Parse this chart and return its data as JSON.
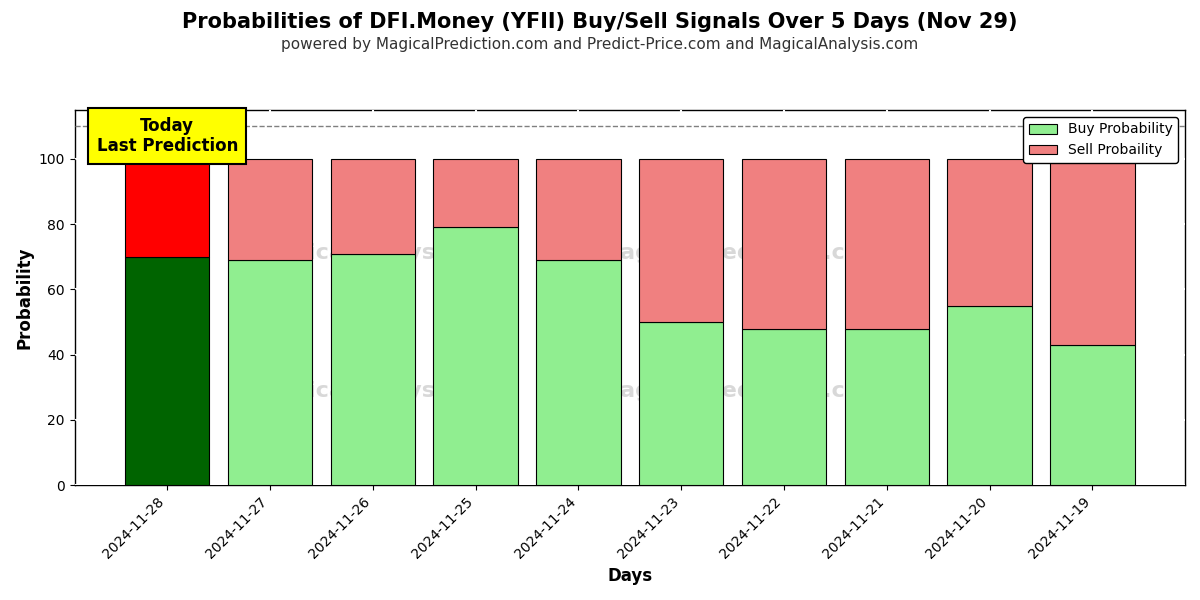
{
  "title": "Probabilities of DFI.Money (YFII) Buy/Sell Signals Over 5 Days (Nov 29)",
  "subtitle": "powered by MagicalPrediction.com and Predict-Price.com and MagicalAnalysis.com",
  "xlabel": "Days",
  "ylabel": "Probability",
  "categories": [
    "2024-11-28",
    "2024-11-27",
    "2024-11-26",
    "2024-11-25",
    "2024-11-24",
    "2024-11-23",
    "2024-11-22",
    "2024-11-21",
    "2024-11-20",
    "2024-11-19"
  ],
  "buy_values": [
    70,
    69,
    71,
    79,
    69,
    50,
    48,
    48,
    55,
    43
  ],
  "sell_values": [
    30,
    31,
    29,
    21,
    31,
    50,
    52,
    52,
    45,
    57
  ],
  "buy_colors": [
    "#006400",
    "#90EE90",
    "#90EE90",
    "#90EE90",
    "#90EE90",
    "#90EE90",
    "#90EE90",
    "#90EE90",
    "#90EE90",
    "#90EE90"
  ],
  "sell_colors": [
    "#FF0000",
    "#F08080",
    "#F08080",
    "#F08080",
    "#F08080",
    "#F08080",
    "#F08080",
    "#F08080",
    "#F08080",
    "#F08080"
  ],
  "today_label": "Today\nLast Prediction",
  "today_bg": "#FFFF00",
  "legend_buy_color": "#90EE90",
  "legend_sell_color": "#F08080",
  "legend_buy_label": "Buy Probability",
  "legend_sell_label": "Sell Probaility",
  "bar_edge_color": "#000000",
  "grid_color": "#FFFFFF",
  "bg_color": "#FFFFFF",
  "plot_bg_color": "#FFFFFF",
  "dashed_line_y": 110,
  "ylim": [
    0,
    115
  ],
  "yticks": [
    0,
    20,
    40,
    60,
    80,
    100
  ],
  "title_fontsize": 15,
  "subtitle_fontsize": 11,
  "bar_width": 0.82
}
